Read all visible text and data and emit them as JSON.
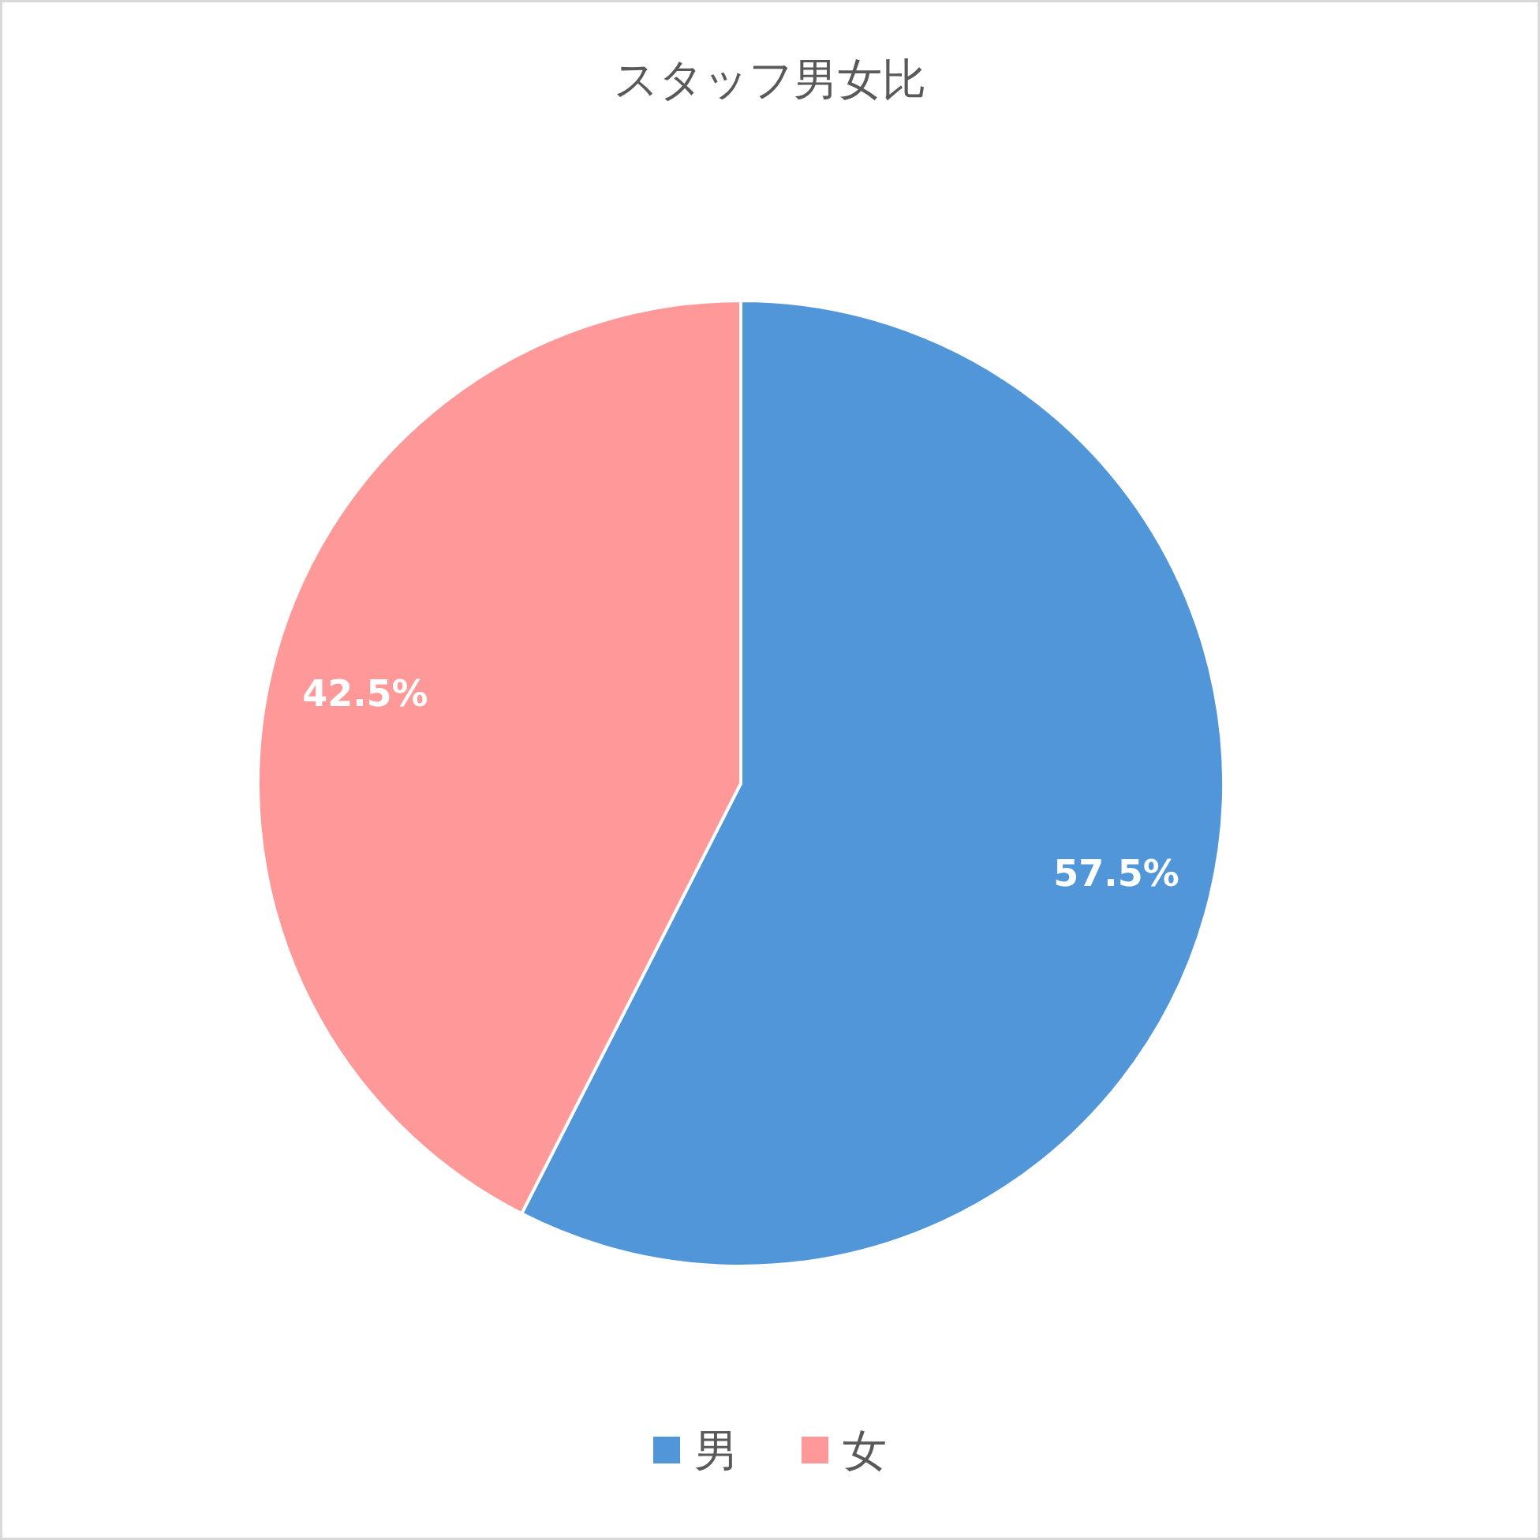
{
  "chart_data": {
    "type": "pie",
    "title": "スタッフ男女比",
    "categories": [
      "男",
      "女"
    ],
    "values": [
      57.5,
      42.5
    ],
    "colors": [
      "#5196d9",
      "#ff9999"
    ],
    "value_labels": [
      "57.5%",
      "42.5%"
    ],
    "legend": "bottom"
  }
}
